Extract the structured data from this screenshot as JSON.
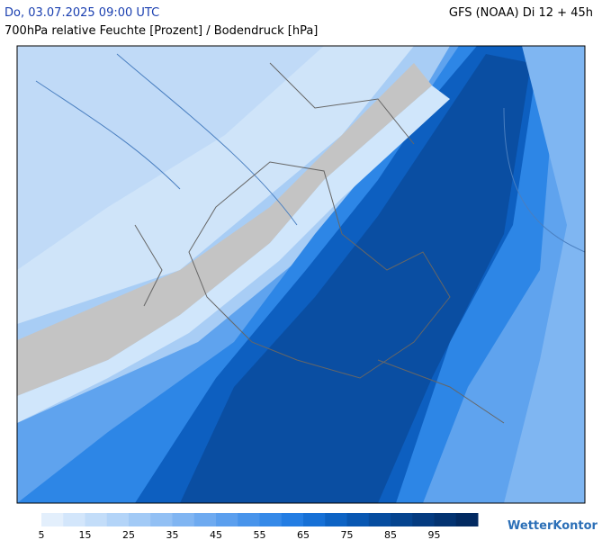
{
  "header": {
    "date": "Do, 03.07.2025 09:00 UTC",
    "model": "GFS (NOAA) Di 12 + 45h",
    "title": "700hPa relative Feuchte [Prozent] / Bodendruck [hPa]"
  },
  "legend": {
    "range": [
      5,
      105
    ],
    "colors": [
      "#e3effc",
      "#d3e6fb",
      "#c3ddf9",
      "#b3d4f8",
      "#a2caf6",
      "#92c0f4",
      "#80b5f2",
      "#6eaaf0",
      "#5b9fee",
      "#4894eb",
      "#3589e8",
      "#237de3",
      "#1670d6",
      "#0d63c4",
      "#0857b2",
      "#064da0",
      "#05448f",
      "#043b80",
      "#033371",
      "#022a61"
    ],
    "ticks": [
      5,
      15,
      25,
      35,
      45,
      55,
      65,
      75,
      85,
      95
    ]
  },
  "logo": "WetterKontor"
}
